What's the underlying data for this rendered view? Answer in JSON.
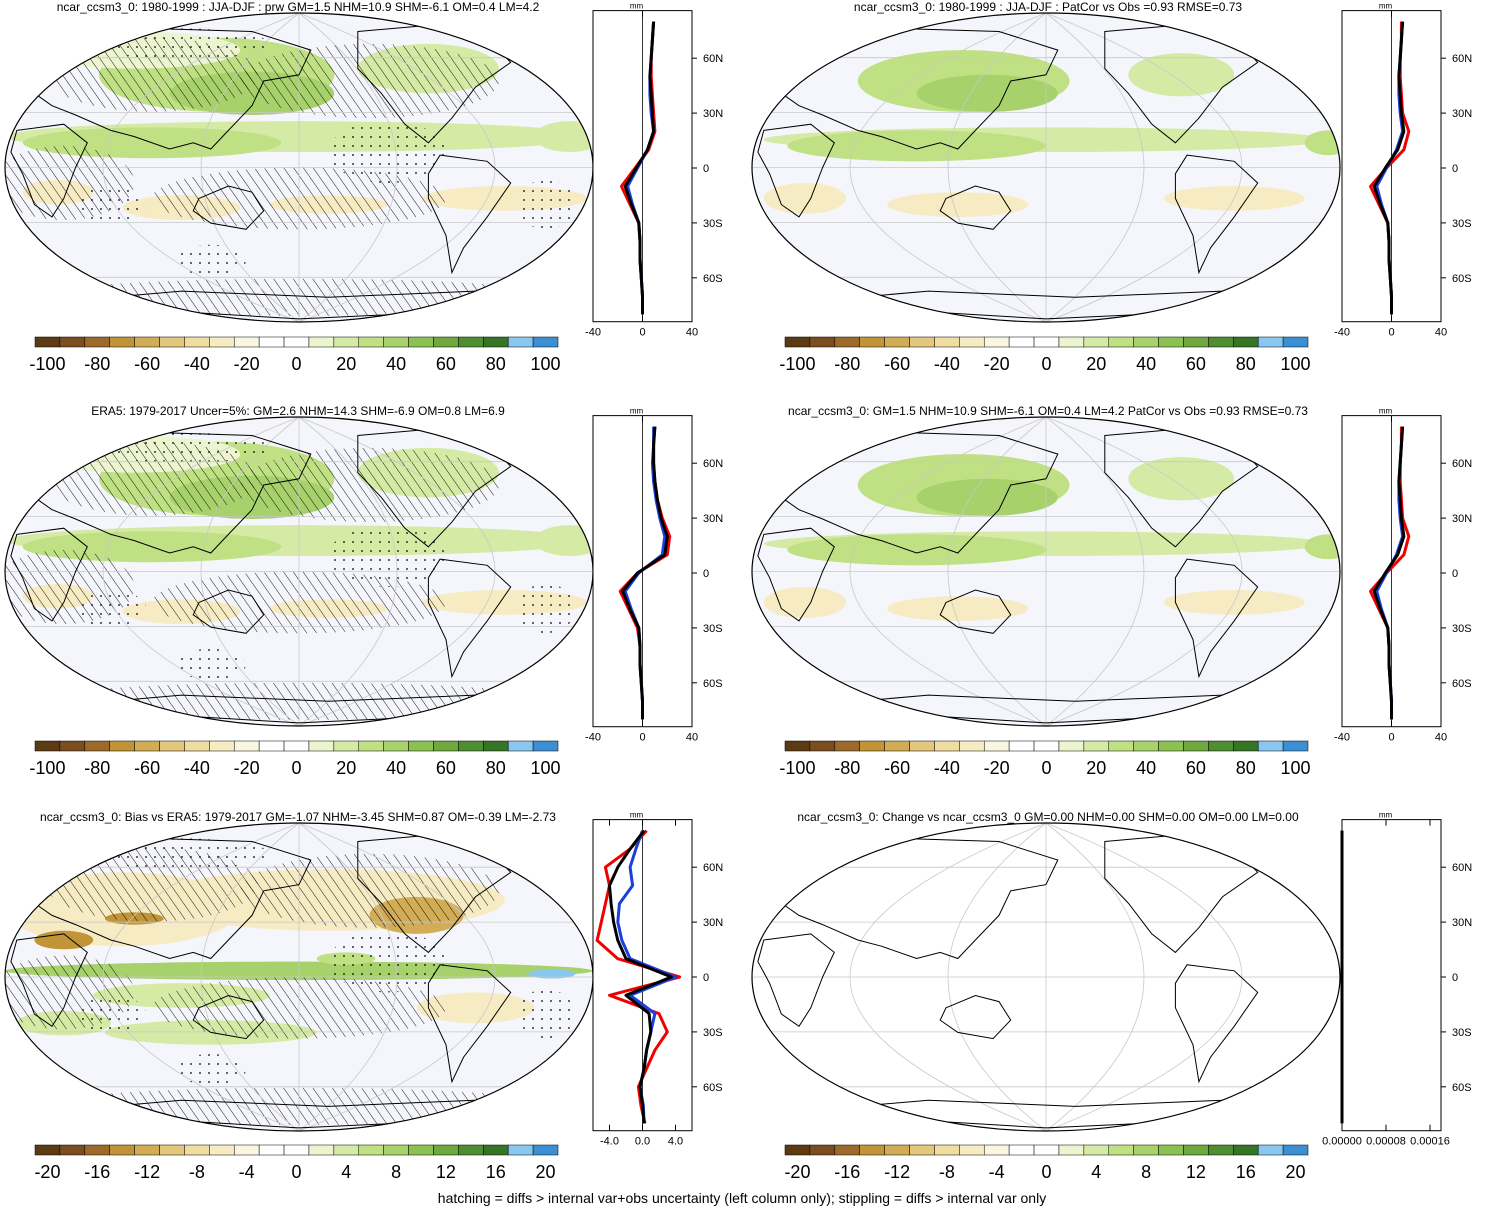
{
  "footnote": "hatching = diffs > internal var+obs uncertainty (left column only); stippling = diffs > internal var only",
  "colors": {
    "scale": [
      "#5c3b14",
      "#7a4e1f",
      "#9c6a2a",
      "#c09437",
      "#d3ad56",
      "#e3c77c",
      "#efdca0",
      "#f6ebc3",
      "#fbf6e2",
      "#ffffff",
      "#ffffff",
      "#ecf5cf",
      "#d5eba5",
      "#bfe083",
      "#a6d16b",
      "#8cc153",
      "#6ea83f",
      "#4f8e31",
      "#357525",
      "#89c7ee",
      "#3d8fd4"
    ],
    "ocean": "#f5f6fc",
    "red": "#f20000",
    "blue": "#1a3fdc",
    "black": "#000000"
  },
  "chart_data": [
    {
      "type": "heatmap",
      "panel": "model-climatology",
      "title": "ncar_ccsm3_0: 1980-1999 : JJA-DJF : prw GM=1.5 NHM=10.9 SHM=-6.1 OM=0.4 LM=4.2",
      "colorbar_ticks": [
        "-100",
        "-80",
        "-60",
        "-40",
        "-20",
        "0",
        "20",
        "40",
        "60",
        "80",
        "100"
      ],
      "colorbar_range": [
        -105,
        105
      ],
      "hatching": true,
      "stippling": true,
      "zonal": {
        "unit": "mm",
        "xlim": [
          -40,
          40
        ],
        "xticks": [
          "-40",
          "0",
          "40"
        ],
        "lat_ticks": [
          "60N",
          "30N",
          "0",
          "30S",
          "60S"
        ],
        "lat": [
          80,
          70,
          60,
          50,
          40,
          30,
          20,
          10,
          0,
          -10,
          -20,
          -30,
          -40,
          -50,
          -60,
          -70,
          -80
        ],
        "series": [
          {
            "color": "red",
            "values": [
              9,
              8,
              7,
              7,
              8,
              9,
              10,
              5,
              -6,
              -17,
              -10,
              -3,
              -2,
              -2,
              -1,
              0,
              0
            ]
          },
          {
            "color": "blue",
            "values": [
              9,
              8,
              7,
              6,
              6,
              7,
              9,
              4,
              -4,
              -12,
              -8,
              -3,
              -2,
              -2,
              -1,
              0,
              0
            ]
          },
          {
            "color": "black",
            "values": [
              9,
              8,
              7,
              6,
              7,
              8,
              9,
              4,
              -5,
              -14,
              -9,
              -3,
              -2,
              -2,
              -1,
              0,
              0
            ]
          }
        ]
      }
    },
    {
      "type": "heatmap",
      "panel": "model-pattern",
      "title": "ncar_ccsm3_0: 1980-1999 : JJA-DJF : PatCor vs Obs =0.93 RMSE=0.73",
      "colorbar_ticks": [
        "-100",
        "-80",
        "-60",
        "-40",
        "-20",
        "0",
        "20",
        "40",
        "60",
        "80",
        "100"
      ],
      "colorbar_range": [
        -105,
        105
      ],
      "hatching": false,
      "stippling": false,
      "zonal": {
        "unit": "mm",
        "xlim": [
          -40,
          40
        ],
        "xticks": [
          "-40",
          "0",
          "40"
        ],
        "lat_ticks": [
          "60N",
          "30N",
          "0",
          "30S",
          "60S"
        ],
        "lat": [
          80,
          70,
          60,
          50,
          40,
          30,
          20,
          10,
          0,
          -10,
          -20,
          -30,
          -40,
          -50,
          -60,
          -70,
          -80
        ],
        "series": [
          {
            "color": "red",
            "values": [
              8,
              8,
              7,
              7,
              8,
              9,
              14,
              10,
              -4,
              -17,
              -10,
              -3,
              -2,
              -2,
              -1,
              0,
              0
            ]
          },
          {
            "color": "blue",
            "values": [
              9,
              8,
              7,
              6,
              6,
              7,
              9,
              4,
              -4,
              -12,
              -8,
              -3,
              -2,
              -2,
              -1,
              0,
              0
            ]
          },
          {
            "color": "black",
            "values": [
              9,
              8,
              7,
              6,
              7,
              8,
              10,
              5,
              -5,
              -14,
              -9,
              -3,
              -2,
              -2,
              -1,
              0,
              0
            ]
          }
        ]
      }
    },
    {
      "type": "heatmap",
      "panel": "obs-climatology",
      "title": "ERA5: 1979-2017 Uncer=5%: GM=2.6 NHM=14.3 SHM=-6.9 OM=0.8 LM=6.9",
      "colorbar_ticks": [
        "-100",
        "-80",
        "-60",
        "-40",
        "-20",
        "0",
        "20",
        "40",
        "60",
        "80",
        "100"
      ],
      "colorbar_range": [
        -105,
        105
      ],
      "hatching": true,
      "stippling": true,
      "zonal": {
        "unit": "mm",
        "xlim": [
          -40,
          40
        ],
        "xticks": [
          "-40",
          "0",
          "40"
        ],
        "lat_ticks": [
          "60N",
          "30N",
          "0",
          "30S",
          "60S"
        ],
        "lat": [
          80,
          70,
          60,
          50,
          40,
          30,
          20,
          10,
          0,
          -10,
          -20,
          -30,
          -40,
          -50,
          -60,
          -70,
          -80
        ],
        "series": [
          {
            "color": "red",
            "values": [
              10,
              9,
              9,
              10,
              12,
              16,
              22,
              20,
              -4,
              -18,
              -11,
              -4,
              -2,
              -2,
              -1,
              0,
              0
            ]
          },
          {
            "color": "blue",
            "values": [
              9,
              9,
              8,
              9,
              11,
              14,
              18,
              16,
              -3,
              -14,
              -9,
              -3,
              -2,
              -2,
              -1,
              0,
              0
            ]
          },
          {
            "color": "black",
            "values": [
              10,
              9,
              9,
              10,
              12,
              15,
              20,
              18,
              -4,
              -16,
              -10,
              -3,
              -2,
              -2,
              -1,
              0,
              0
            ]
          }
        ]
      }
    },
    {
      "type": "heatmap",
      "panel": "obs-pattern",
      "title": "ncar_ccsm3_0: GM=1.5 NHM=10.9 SHM=-6.1 OM=0.4 LM=4.2 PatCor vs Obs =0.93 RMSE=0.73",
      "colorbar_ticks": [
        "-100",
        "-80",
        "-60",
        "-40",
        "-20",
        "0",
        "20",
        "40",
        "60",
        "80",
        "100"
      ],
      "colorbar_range": [
        -105,
        105
      ],
      "hatching": false,
      "stippling": false,
      "zonal": {
        "unit": "mm",
        "xlim": [
          -40,
          40
        ],
        "xticks": [
          "-40",
          "0",
          "40"
        ],
        "lat_ticks": [
          "60N",
          "30N",
          "0",
          "30S",
          "60S"
        ],
        "lat": [
          80,
          70,
          60,
          50,
          40,
          30,
          20,
          10,
          0,
          -10,
          -20,
          -30,
          -40,
          -50,
          -60,
          -70,
          -80
        ],
        "series": [
          {
            "color": "red",
            "values": [
              8,
              8,
              7,
              7,
              8,
              9,
              14,
              10,
              -4,
              -17,
              -10,
              -3,
              -2,
              -2,
              -1,
              0,
              0
            ]
          },
          {
            "color": "blue",
            "values": [
              9,
              8,
              7,
              6,
              6,
              7,
              9,
              4,
              -4,
              -12,
              -8,
              -3,
              -2,
              -2,
              -1,
              0,
              0
            ]
          },
          {
            "color": "black",
            "values": [
              9,
              8,
              7,
              6,
              7,
              8,
              10,
              5,
              -5,
              -14,
              -9,
              -3,
              -2,
              -2,
              -1,
              0,
              0
            ]
          }
        ]
      }
    },
    {
      "type": "heatmap",
      "panel": "bias",
      "title": "ncar_ccsm3_0: Bias vs ERA5: 1979-2017 GM=-1.07 NHM=-3.45 SHM=0.87 OM=-0.39 LM=-2.73",
      "colorbar_ticks": [
        "-20",
        "-16",
        "-12",
        "-8",
        "-4",
        "0",
        "4",
        "8",
        "12",
        "16",
        "20"
      ],
      "colorbar_range": [
        -21,
        21
      ],
      "hatching": true,
      "stippling": true,
      "zonal": {
        "unit": "mm",
        "xlim": [
          -6,
          6
        ],
        "xticks": [
          "-4.0",
          "0.0",
          "4.0"
        ],
        "lat_ticks": [
          "60N",
          "30N",
          "0",
          "30S",
          "60S"
        ],
        "lat": [
          80,
          70,
          60,
          50,
          40,
          30,
          20,
          10,
          0,
          -10,
          -20,
          -30,
          -40,
          -50,
          -60,
          -70,
          -80
        ],
        "series": [
          {
            "color": "red",
            "values": [
              0.5,
              -1.5,
              -4.5,
              -4.0,
              -4.5,
              -5.0,
              -5.5,
              -3.0,
              4.5,
              -4.0,
              2.0,
              3.0,
              1.5,
              0.5,
              -0.5,
              -0.2,
              0.3
            ]
          },
          {
            "color": "blue",
            "values": [
              0.0,
              -0.8,
              -1.5,
              -1.2,
              -2.8,
              -3.0,
              -2.5,
              -1.5,
              4.0,
              -1.5,
              1.5,
              1.0,
              0.5,
              0.2,
              -0.3,
              0.1,
              0.2
            ]
          },
          {
            "color": "black",
            "values": [
              0.2,
              -1.5,
              -3.0,
              -4.0,
              -3.8,
              -3.5,
              -3.0,
              -2.0,
              3.5,
              -2.0,
              0.8,
              1.0,
              0.5,
              0.2,
              -0.3,
              0.0,
              0.2
            ]
          }
        ]
      }
    },
    {
      "type": "heatmap",
      "panel": "change",
      "title": "ncar_ccsm3_0: Change vs ncar_ccsm3_0 GM=0.00 NHM=0.00 SHM=0.00 OM=0.00 LM=0.00",
      "colorbar_ticks": [
        "-20",
        "-16",
        "-12",
        "-8",
        "-4",
        "0",
        "4",
        "8",
        "12",
        "16",
        "20"
      ],
      "colorbar_range": [
        -21,
        21
      ],
      "hatching": false,
      "stippling": false,
      "zonal": {
        "unit": "mm",
        "xlim": [
          0,
          0.00018
        ],
        "xticks": [
          "0.00000",
          "0.00008",
          "0.00016"
        ],
        "lat_ticks": [
          "60N",
          "30N",
          "0",
          "30S",
          "60S"
        ],
        "lat": [
          80,
          70,
          60,
          50,
          40,
          30,
          20,
          10,
          0,
          -10,
          -20,
          -30,
          -40,
          -50,
          -60,
          -70,
          -80
        ],
        "series": [
          {
            "color": "black",
            "values": [
              0,
              0,
              0,
              0,
              0,
              0,
              0,
              0,
              0,
              0,
              0,
              0,
              0,
              0,
              0,
              0,
              0
            ]
          }
        ]
      }
    }
  ]
}
